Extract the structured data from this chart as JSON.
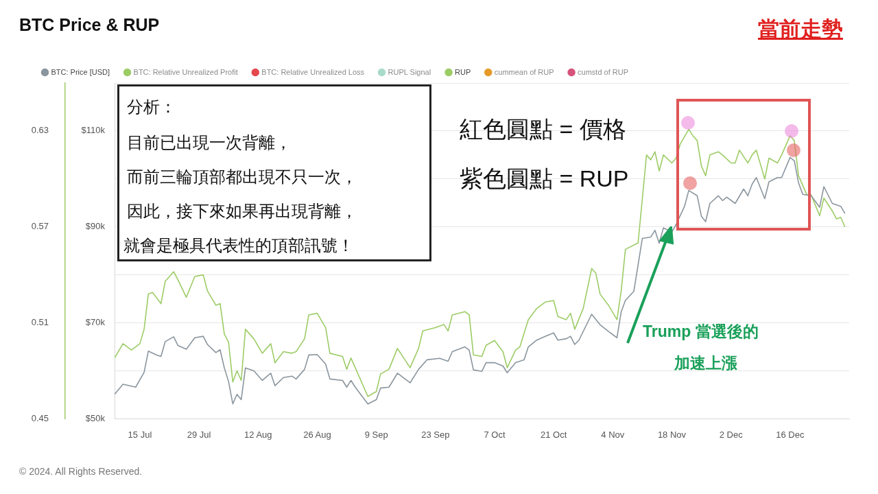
{
  "chart_data": {
    "type": "line",
    "title": "BTC Price & RUP",
    "annotations": [
      "當前走勢",
      "分析：",
      "目前已出現一次背離，",
      "而前三輪頂部都出現不只一次，",
      "因此，接下來如果再出現背離，",
      "就會是極具代表性的頂部訊號！",
      "紅色圓點 = 價格",
      "紫色圓點 = RUP",
      "Trump 當選後的",
      "加速上漲",
      "© 2024. All Rights Reserved."
    ],
    "xlim": [
      "2024-07-09",
      "2024-12-30"
    ],
    "xticks": [
      {
        "value": "2024-07-15",
        "label": "15 Jul"
      },
      {
        "value": "2024-07-29",
        "label": "29 Jul"
      },
      {
        "value": "2024-08-12",
        "label": "12 Aug"
      },
      {
        "value": "2024-08-26",
        "label": "26 Aug"
      },
      {
        "value": "2024-09-09",
        "label": "9 Sep"
      },
      {
        "value": "2024-09-23",
        "label": "23 Sep"
      },
      {
        "value": "2024-10-07",
        "label": "7 Oct"
      },
      {
        "value": "2024-10-21",
        "label": "21 Oct"
      },
      {
        "value": "2024-11-04",
        "label": "4 Nov"
      },
      {
        "value": "2024-11-18",
        "label": "18 Nov"
      },
      {
        "value": "2024-12-02",
        "label": "2 Dec"
      },
      {
        "value": "2024-12-16",
        "label": "16 Dec"
      }
    ],
    "ylim": [
      50000,
      120000
    ],
    "yticks": [
      {
        "value": 50000,
        "label": "$50k"
      },
      {
        "value": 60000,
        "label": null
      },
      {
        "value": 70000,
        "label": "$70k"
      },
      {
        "value": 80000,
        "label": null
      },
      {
        "value": 90000,
        "label": "$90k"
      },
      {
        "value": 100000,
        "label": null
      },
      {
        "value": 110000,
        "label": "$110k"
      },
      {
        "value": 120000,
        "label": null
      }
    ],
    "y2lim": [
      0.45,
      0.66
    ],
    "y2ticks": [
      0.45,
      0.51,
      0.57,
      0.63
    ],
    "grid": "y",
    "legend": "top left",
    "marker": "none",
    "line_style": "solid",
    "series": [
      {
        "name": "BTC: Price [USD]",
        "color": "#8a959e",
        "type": "line",
        "x": [
          "2024-07-09",
          "2024-07-11",
          "2024-07-14",
          "2024-07-16",
          "2024-07-17",
          "2024-07-19",
          "2024-07-20",
          "2024-07-21",
          "2024-07-23",
          "2024-07-24",
          "2024-07-26",
          "2024-07-28",
          "2024-07-30",
          "2024-07-31",
          "2024-08-02",
          "2024-08-03",
          "2024-08-04",
          "2024-08-05",
          "2024-08-06",
          "2024-08-07",
          "2024-08-08",
          "2024-08-09",
          "2024-08-11",
          "2024-08-13",
          "2024-08-15",
          "2024-08-16",
          "2024-08-18",
          "2024-08-20",
          "2024-08-21",
          "2024-08-23",
          "2024-08-24",
          "2024-08-26",
          "2024-08-28",
          "2024-08-29",
          "2024-09-01",
          "2024-09-02",
          "2024-09-03",
          "2024-09-04",
          "2024-09-07",
          "2024-09-09",
          "2024-09-10",
          "2024-09-12",
          "2024-09-14",
          "2024-09-17",
          "2024-09-19",
          "2024-09-21",
          "2024-09-24",
          "2024-09-26",
          "2024-09-27",
          "2024-09-30",
          "2024-10-01",
          "2024-10-02",
          "2024-10-04",
          "2024-10-05",
          "2024-10-07",
          "2024-10-09",
          "2024-10-10",
          "2024-10-12",
          "2024-10-14",
          "2024-10-15",
          "2024-10-17",
          "2024-10-19",
          "2024-10-21",
          "2024-10-22",
          "2024-10-24",
          "2024-10-25",
          "2024-10-26",
          "2024-10-27",
          "2024-10-30",
          "2024-11-01",
          "2024-11-03",
          "2024-11-05",
          "2024-11-06",
          "2024-11-07",
          "2024-11-09",
          "2024-11-11",
          "2024-11-13",
          "2024-11-14",
          "2024-11-15",
          "2024-11-16",
          "2024-11-18",
          "2024-11-19",
          "2024-11-21",
          "2024-11-22",
          "2024-11-24",
          "2024-11-25",
          "2024-11-26",
          "2024-11-27",
          "2024-11-29",
          "2024-11-30",
          "2024-12-01",
          "2024-12-03",
          "2024-12-05",
          "2024-12-06",
          "2024-12-07",
          "2024-12-08",
          "2024-12-10",
          "2024-12-11",
          "2024-12-13",
          "2024-12-14",
          "2024-12-16",
          "2024-12-17",
          "2024-12-18",
          "2024-12-19",
          "2024-12-21",
          "2024-12-23",
          "2024-12-24",
          "2024-12-26",
          "2024-12-28",
          "2024-12-29"
        ],
        "values": [
          55100,
          57200,
          56600,
          59700,
          64100,
          63300,
          63000,
          66100,
          67100,
          65300,
          64500,
          66900,
          67200,
          65500,
          63800,
          64400,
          60600,
          57800,
          53100,
          55100,
          54000,
          60600,
          60000,
          58000,
          59500,
          56900,
          58600,
          58900,
          58300,
          60300,
          63300,
          63400,
          61400,
          58300,
          58000,
          56600,
          58000,
          56600,
          53100,
          54000,
          56400,
          56600,
          59500,
          57500,
          60300,
          62300,
          62600,
          62000,
          64000,
          65000,
          64300,
          60200,
          59900,
          61700,
          61700,
          61000,
          59600,
          61700,
          62300,
          65000,
          66400,
          67200,
          67900,
          66400,
          66700,
          67200,
          65500,
          66400,
          71800,
          69600,
          68200,
          66900,
          72300,
          74700,
          76600,
          87600,
          87900,
          89300,
          86600,
          89800,
          88900,
          90500,
          94300,
          97600,
          96500,
          92200,
          91100,
          94900,
          96500,
          95500,
          96200,
          94900,
          97900,
          96500,
          98900,
          100300,
          95900,
          99400,
          100300,
          100300,
          104500,
          103800,
          99200,
          96800,
          96500,
          94100,
          98400,
          94900,
          94300,
          92800
        ]
      },
      {
        "name": "BTC: Relative Unrealized Profit",
        "color": "#9ccc65"
      },
      {
        "name": "BTC: Relative Unrealized Loss",
        "color": "#e5484d"
      },
      {
        "name": "RUPL Signal",
        "color": "#a8dcc8"
      },
      {
        "name": "RUP",
        "color": "#9ccc65",
        "type": "line",
        "axis": "y2",
        "x": [
          "2024-07-09",
          "2024-07-11",
          "2024-07-13",
          "2024-07-15",
          "2024-07-16",
          "2024-07-17",
          "2024-07-18",
          "2024-07-20",
          "2024-07-21",
          "2024-07-23",
          "2024-07-24",
          "2024-07-26",
          "2024-07-28",
          "2024-07-30",
          "2024-07-31",
          "2024-08-02",
          "2024-08-03",
          "2024-08-04",
          "2024-08-05",
          "2024-08-06",
          "2024-08-07",
          "2024-08-08",
          "2024-08-09",
          "2024-08-11",
          "2024-08-13",
          "2024-08-15",
          "2024-08-16",
          "2024-08-18",
          "2024-08-20",
          "2024-08-21",
          "2024-08-23",
          "2024-08-24",
          "2024-08-26",
          "2024-08-28",
          "2024-08-29",
          "2024-09-01",
          "2024-09-02",
          "2024-09-03",
          "2024-09-04",
          "2024-09-07",
          "2024-09-09",
          "2024-09-10",
          "2024-09-12",
          "2024-09-14",
          "2024-09-17",
          "2024-09-19",
          "2024-09-20",
          "2024-09-23",
          "2024-09-25",
          "2024-09-26",
          "2024-09-27",
          "2024-09-30",
          "2024-10-01",
          "2024-10-02",
          "2024-10-04",
          "2024-10-05",
          "2024-10-07",
          "2024-10-09",
          "2024-10-10",
          "2024-10-12",
          "2024-10-13",
          "2024-10-15",
          "2024-10-17",
          "2024-10-19",
          "2024-10-21",
          "2024-10-22",
          "2024-10-24",
          "2024-10-25",
          "2024-10-26",
          "2024-10-28",
          "2024-10-30",
          "2024-10-31",
          "2024-11-01",
          "2024-11-03",
          "2024-11-05",
          "2024-11-06",
          "2024-11-07",
          "2024-11-10",
          "2024-11-12",
          "2024-11-13",
          "2024-11-14",
          "2024-11-15",
          "2024-11-16",
          "2024-11-18",
          "2024-11-19",
          "2024-11-20",
          "2024-11-22",
          "2024-11-23",
          "2024-11-24",
          "2024-11-25",
          "2024-11-26",
          "2024-11-27",
          "2024-11-29",
          "2024-11-30",
          "2024-12-02",
          "2024-12-03",
          "2024-12-04",
          "2024-12-06",
          "2024-12-07",
          "2024-12-08",
          "2024-12-10",
          "2024-12-11",
          "2024-12-13",
          "2024-12-14",
          "2024-12-16",
          "2024-12-17",
          "2024-12-18",
          "2024-12-20",
          "2024-12-21",
          "2024-12-23",
          "2024-12-24",
          "2024-12-26",
          "2024-12-27",
          "2024-12-28",
          "2024-12-29"
        ],
        "values": [
          0.488,
          0.497,
          0.493,
          0.497,
          0.506,
          0.528,
          0.529,
          0.522,
          0.536,
          0.542,
          0.537,
          0.526,
          0.539,
          0.54,
          0.53,
          0.521,
          0.522,
          0.503,
          0.498,
          0.473,
          0.48,
          0.474,
          0.506,
          0.5,
          0.491,
          0.497,
          0.485,
          0.492,
          0.491,
          0.492,
          0.5,
          0.515,
          0.516,
          0.507,
          0.491,
          0.489,
          0.481,
          0.488,
          0.482,
          0.464,
          0.467,
          0.478,
          0.481,
          0.494,
          0.482,
          0.494,
          0.505,
          0.507,
          0.509,
          0.505,
          0.515,
          0.517,
          0.515,
          0.49,
          0.489,
          0.496,
          0.499,
          0.492,
          0.482,
          0.493,
          0.495,
          0.512,
          0.519,
          0.523,
          0.524,
          0.514,
          0.512,
          0.516,
          0.506,
          0.519,
          0.544,
          0.541,
          0.528,
          0.521,
          0.512,
          0.53,
          0.556,
          0.56,
          0.615,
          0.612,
          0.617,
          0.605,
          0.615,
          0.61,
          0.613,
          0.622,
          0.631,
          0.627,
          0.624,
          0.608,
          0.602,
          0.615,
          0.617,
          0.615,
          0.61,
          0.61,
          0.618,
          0.61,
          0.615,
          0.618,
          0.6,
          0.613,
          0.61,
          0.615,
          0.627,
          0.624,
          0.602,
          0.59,
          0.59,
          0.577,
          0.588,
          0.58,
          0.575,
          0.576,
          0.57
        ]
      },
      {
        "name": "cummean of RUP",
        "color": "#e69a28"
      },
      {
        "name": "cumstd of RUP",
        "color": "#d6537a"
      }
    ]
  }
}
